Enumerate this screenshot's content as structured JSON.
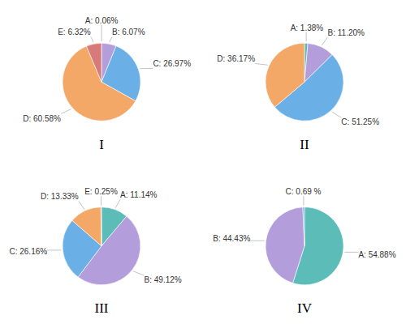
{
  "chart_data": [
    {
      "type": "pie",
      "title": "I",
      "values": [
        0.06,
        6.07,
        26.97,
        60.58,
        6.32
      ],
      "value_labels": [
        "A: 0.06%",
        "B: 6.07%",
        "C: 26.97%",
        "D: 60.58%",
        "E: 6.32%"
      ],
      "colors": [
        "#5bbcb8",
        "#b39ddb",
        "#6aafe6",
        "#f4a868",
        "#d87a7a"
      ],
      "data_labels": true
    },
    {
      "type": "pie",
      "title": "II",
      "values": [
        1.38,
        11.2,
        51.25,
        36.17
      ],
      "value_labels": [
        "A: 1.38%",
        "B: 11.20%",
        "C: 51.25%",
        "D: 36.17%"
      ],
      "colors": [
        "#5bbcb8",
        "#b39ddb",
        "#6aafe6",
        "#f4a868"
      ],
      "data_labels": true
    },
    {
      "type": "pie",
      "title": "III",
      "values": [
        11.14,
        49.12,
        26.16,
        13.33,
        0.25
      ],
      "value_labels": [
        "A: 11.14%",
        "B: 49.12%",
        "C: 26.16%",
        "D: 13.33%",
        "E: 0.25%"
      ],
      "colors": [
        "#5bbcb8",
        "#b39ddb",
        "#6aafe6",
        "#f4a868",
        "#d87a7a"
      ],
      "data_labels": true
    },
    {
      "type": "pie",
      "title": "IV",
      "values": [
        54.88,
        44.43,
        0.69
      ],
      "value_labels": [
        "A: 54.88%",
        "B: 44.43%",
        "C: 0.69 %"
      ],
      "colors": [
        "#5bbcb8",
        "#b39ddb",
        "#6aafe6"
      ],
      "data_labels": true
    }
  ]
}
